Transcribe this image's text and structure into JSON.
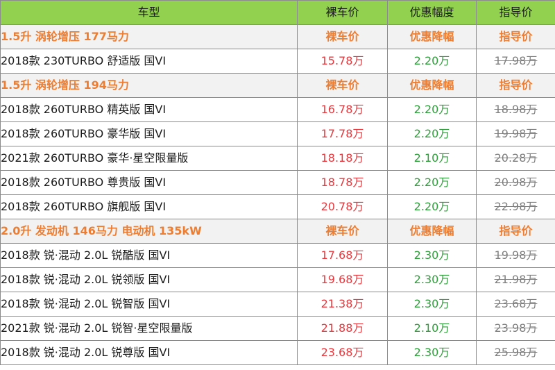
{
  "header": {
    "model": "车型",
    "price": "裸车价",
    "discount": "优惠幅度",
    "guide": "指导价"
  },
  "groups": [
    {
      "title": "1.5升 涡轮增压 177马力",
      "price": "裸车价",
      "discount": "优惠降幅",
      "guide": "指导价",
      "rows": [
        {
          "model": "2018款 230TURBO 舒适版 国VI",
          "price": "15.78万",
          "discount": "2.20万",
          "guide": "17.98万"
        }
      ]
    },
    {
      "title": "1.5升 涡轮增压 194马力",
      "price": "裸车价",
      "discount": "优惠降幅",
      "guide": "指导价",
      "rows": [
        {
          "model": "2018款 260TURBO 精英版 国VI",
          "price": "16.78万",
          "discount": "2.20万",
          "guide": "18.98万"
        },
        {
          "model": "2018款 260TURBO 豪华版 国VI",
          "price": "17.78万",
          "discount": "2.20万",
          "guide": "19.98万"
        },
        {
          "model": "2021款 260TURBO 豪华·星空限量版",
          "price": "18.18万",
          "discount": "2.10万",
          "guide": "20.28万"
        },
        {
          "model": "2018款 260TURBO 尊贵版 国VI",
          "price": "18.78万",
          "discount": "2.20万",
          "guide": "20.98万"
        },
        {
          "model": "2018款 260TURBO 旗舰版 国VI",
          "price": "20.78万",
          "discount": "2.20万",
          "guide": "22.98万"
        }
      ]
    },
    {
      "title": "2.0升 发动机 146马力 电动机 135kW",
      "price": "裸车价",
      "discount": "优惠降幅",
      "guide": "指导价",
      "rows": [
        {
          "model": "2018款 锐·混动 2.0L 锐酷版 国VI",
          "price": "17.68万",
          "discount": "2.30万",
          "guide": "19.98万"
        },
        {
          "model": "2018款 锐·混动 2.0L 锐领版 国VI",
          "price": "19.68万",
          "discount": "2.30万",
          "guide": "21.98万"
        },
        {
          "model": "2018款 锐·混动 2.0L 锐智版 国VI",
          "price": "21.38万",
          "discount": "2.30万",
          "guide": "23.68万"
        },
        {
          "model": "2021款 锐·混动 2.0L 锐智·星空限量版",
          "price": "21.88万",
          "discount": "2.10万",
          "guide": "23.98万"
        },
        {
          "model": "2018款 锐·混动 2.0L 锐尊版 国VI",
          "price": "23.68万",
          "discount": "2.30万",
          "guide": "25.98万"
        }
      ]
    }
  ]
}
